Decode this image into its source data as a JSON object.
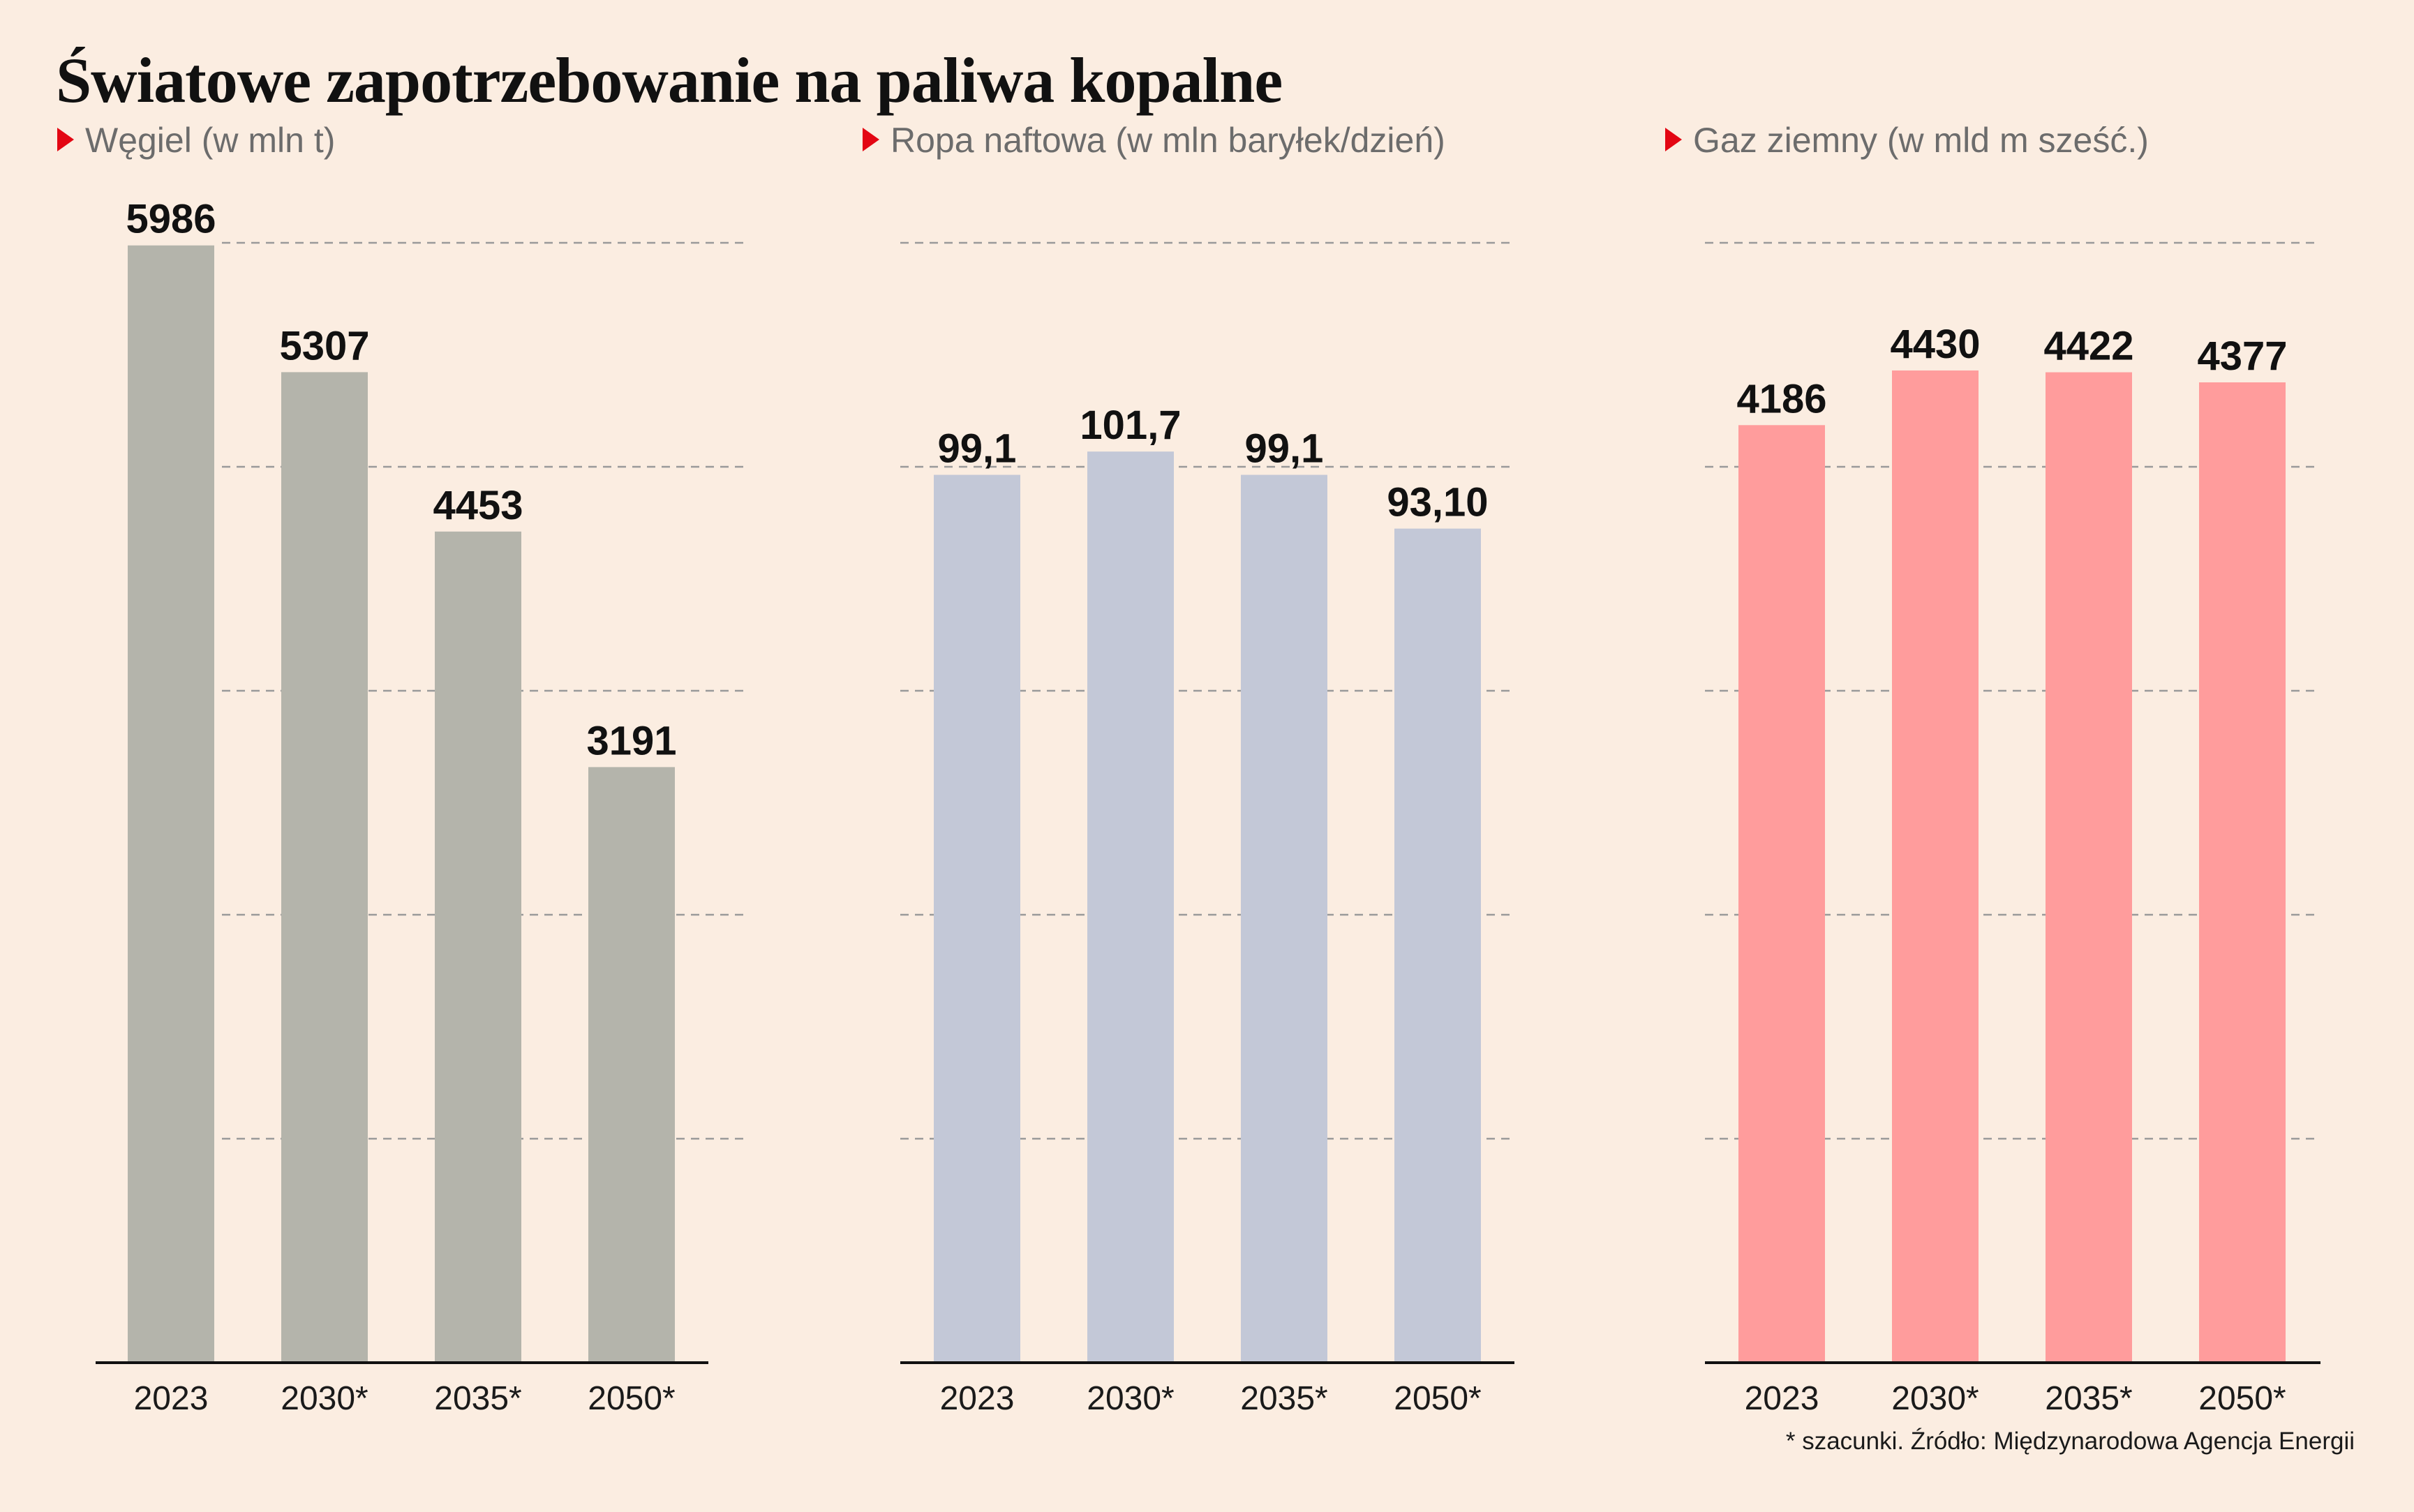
{
  "title": "Światowe zapotrzebowanie na paliwa kopalne",
  "footnote": "* szacunki. Źródło: Międzynarodowa Agencja Energii",
  "chart_data": [
    {
      "type": "bar",
      "title": "Węgiel (w mln t)",
      "categories": [
        "2023",
        "2030*",
        "2035*",
        "2050*"
      ],
      "values": [
        5986,
        5307,
        4453,
        3191
      ],
      "labels": [
        "5986",
        "5307",
        "4453",
        "3191"
      ],
      "ylim": [
        0,
        6000
      ],
      "grid": true,
      "color": "#b4b4ab"
    },
    {
      "type": "bar",
      "title": "Ropa naftowa (w mln baryłek/dzień)",
      "categories": [
        "2023",
        "2030*",
        "2035*",
        "2050*"
      ],
      "values": [
        99.1,
        101.7,
        99.1,
        93.1
      ],
      "labels": [
        "99,1",
        "101,7",
        "99,1",
        "93,10"
      ],
      "ylim": [
        0,
        125
      ],
      "grid": true,
      "color": "#c3c8d7"
    },
    {
      "type": "bar",
      "title": "Gaz ziemny (w mld m sześć.)",
      "categories": [
        "2023",
        "2030*",
        "2035*",
        "2050*"
      ],
      "values": [
        4186,
        4430,
        4422,
        4377
      ],
      "labels": [
        "4186",
        "4430",
        "4422",
        "4377"
      ],
      "ylim": [
        0,
        5000
      ],
      "grid": true,
      "color": "#ff9c9c"
    }
  ]
}
